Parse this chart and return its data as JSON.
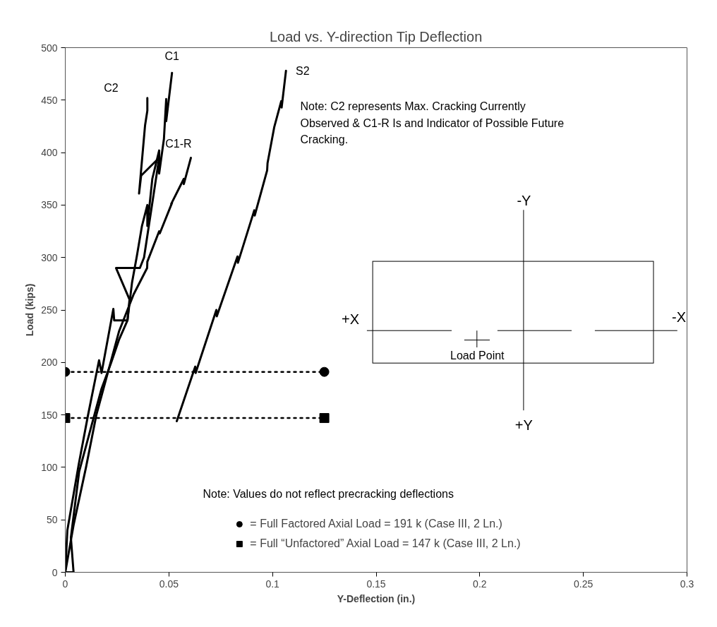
{
  "chart_data": {
    "type": "line",
    "title": "Load vs. Y-direction Tip Deflection",
    "xlabel": "Y-Deflection (in.)",
    "ylabel": "Load (kips)",
    "xlim": [
      0,
      0.3
    ],
    "xticks": [
      0,
      0.05,
      0.1,
      0.15,
      0.2,
      0.25,
      0.3
    ],
    "ylim": [
      0,
      500
    ],
    "yticks": [
      0,
      50,
      100,
      150,
      200,
      250,
      300,
      350,
      400,
      450,
      500
    ],
    "grid": false,
    "legend": "bottom",
    "marker": "none",
    "line_style": "solid",
    "series": [
      {
        "name": "C2",
        "color": "#000000",
        "x": [
          0,
          0.001,
          0.0065,
          0.011,
          0.0163,
          0.0175,
          0.0232,
          0.0236,
          0.03,
          0.031,
          0.0245,
          0.036,
          0.038,
          0.0453,
          0.0366,
          0.0356,
          0.0385,
          0.0396,
          0.0396
        ],
        "values": [
          0,
          40,
          103,
          150,
          202,
          190,
          251,
          240,
          240,
          260,
          290,
          290,
          300,
          395,
          378,
          361,
          426,
          440,
          452
        ]
      },
      {
        "name": "C1",
        "color": "#000000",
        "x": [
          0.0,
          0.004,
          0.0027,
          0.0067,
          0.0135,
          0.0175,
          0.022,
          0.026,
          0.03,
          0.0322,
          0.0345,
          0.037,
          0.0396,
          0.0396,
          0.042,
          0.0453,
          0.0453,
          0.0476,
          0.0487,
          0.0487,
          0.0515
        ],
        "values": [
          0,
          0,
          33,
          96,
          146,
          175,
          199,
          222,
          240,
          276,
          301,
          330,
          350,
          330,
          375,
          402,
          380,
          413,
          451,
          430,
          476
        ]
      },
      {
        "name": "C1-R",
        "color": "#000000",
        "x": [
          0,
          0.004,
          0.01,
          0.015,
          0.0205,
          0.026,
          0.033,
          0.0395,
          0.0396,
          0.0453,
          0.0456,
          0.0515,
          0.0511,
          0.0572,
          0.0572,
          0.0606
        ],
        "values": [
          0,
          45,
          100,
          150,
          190,
          230,
          265,
          290,
          296,
          325,
          323,
          352,
          351,
          375,
          370,
          395
        ]
      },
      {
        "name": "S2",
        "color": "#000000",
        "x": [
          0.0538,
          0.0627,
          0.0629,
          0.0729,
          0.0731,
          0.0831,
          0.0833,
          0.0912,
          0.0914,
          0.0974,
          0.0976,
          0.1008,
          0.1042,
          0.1044,
          0.1065
        ],
        "values": [
          144,
          196,
          190,
          250,
          244,
          301,
          295,
          345,
          340,
          383,
          390,
          424,
          449,
          443,
          478
        ]
      },
      {
        "name": "= Full Factored Axial Load = 191 k (Case III, 2 Ln.)",
        "color": "#000000",
        "x": [
          0,
          0.125
        ],
        "values": [
          191,
          191
        ],
        "marker": "circle",
        "line_style": "dotted"
      },
      {
        "name": "= Full “Unfactored” Axial Load = 147 k (Case III, 2 Ln.)",
        "color": "#000000",
        "x": [
          0,
          0.125
        ],
        "values": [
          147,
          147
        ],
        "marker": "square",
        "line_style": "dotted"
      }
    ],
    "annotations": [
      "Note:  C2 represents Max. Cracking Currently\nObserved & C1-R Is and Indicator of Possible Future\nCracking.",
      "Note:  Values do not reflect precracking deflections",
      "+X",
      "-X",
      "-Y",
      "+Y",
      "Load Point"
    ]
  }
}
